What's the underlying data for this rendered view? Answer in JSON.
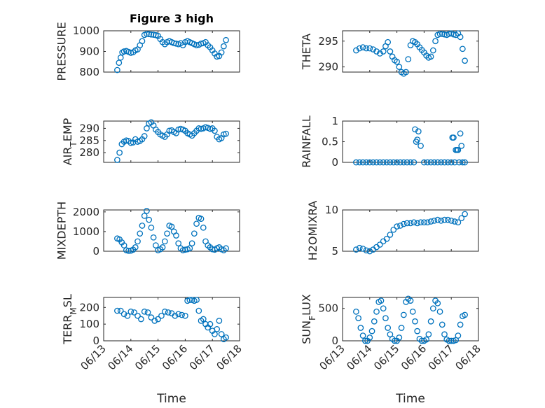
{
  "figure": {
    "marker_color": "#0072BD",
    "grid": true,
    "minor_grid": true
  },
  "chart_data": [
    {
      "type": "scatter",
      "title": "Figure 3 high",
      "ylabel": "PRESSURE",
      "ylim": [
        800,
        1000
      ],
      "yticks": [
        800,
        900,
        1000
      ],
      "yticklabels": [
        "800",
        "900",
        "1000"
      ],
      "xlim": [
        "06/13",
        "06/18"
      ],
      "x": [
        "06/13 12:00",
        "06/13 13:30",
        "06/13 15:00",
        "06/13 16:30",
        "06/13 18:00",
        "06/13 20:00",
        "06/13 22:00",
        "06/14 00:00",
        "06/14 02:00",
        "06/14 04:00",
        "06/14 06:00",
        "06/14 08:00",
        "06/14 10:00",
        "06/14 12:00",
        "06/14 14:00",
        "06/14 16:00",
        "06/14 18:00",
        "06/14 20:00",
        "06/14 22:00",
        "06/15 00:00",
        "06/15 02:00",
        "06/15 04:00",
        "06/15 06:00",
        "06/15 08:00",
        "06/15 10:00",
        "06/15 12:00",
        "06/15 14:00",
        "06/15 16:00",
        "06/15 18:00",
        "06/15 20:00",
        "06/15 22:00",
        "06/16 00:00",
        "06/16 02:00",
        "06/16 04:00",
        "06/16 06:00",
        "06/16 08:00",
        "06/16 10:00",
        "06/16 12:00",
        "06/16 14:00",
        "06/16 16:00",
        "06/16 18:00",
        "06/16 20:00",
        "06/16 22:00",
        "06/17 00:00",
        "06/17 02:00",
        "06/17 04:00",
        "06/17 06:00",
        "06/17 08:00",
        "06/17 10:00",
        "06/17 12:00"
      ],
      "y": [
        810,
        845,
        870,
        895,
        900,
        902,
        898,
        893,
        896,
        905,
        910,
        930,
        950,
        980,
        985,
        984,
        982,
        981,
        979,
        975,
        960,
        945,
        935,
        945,
        950,
        945,
        940,
        938,
        935,
        940,
        930,
        945,
        950,
        945,
        940,
        935,
        930,
        932,
        938,
        940,
        945,
        930,
        920,
        905,
        890,
        875,
        878,
        895,
        925,
        955
      ]
    },
    {
      "type": "scatter",
      "ylabel": "THETA",
      "ylim": [
        289,
        297
      ],
      "yticks": [
        290,
        295
      ],
      "yticklabels": [
        "290",
        "295"
      ],
      "xlim": [
        "06/13",
        "06/18"
      ],
      "x": [
        "06/13 12:00",
        "06/13 15:00",
        "06/13 18:00",
        "06/13 21:00",
        "06/14 00:00",
        "06/14 03:00",
        "06/14 06:00",
        "06/14 09:00",
        "06/14 12:00",
        "06/14 14:00",
        "06/14 16:00",
        "06/14 18:00",
        "06/14 20:00",
        "06/14 22:00",
        "06/15 00:00",
        "06/15 02:00",
        "06/15 04:00",
        "06/15 06:00",
        "06/15 08:00",
        "06/15 10:00",
        "06/15 12:00",
        "06/15 14:00",
        "06/15 16:00",
        "06/15 18:00",
        "06/15 20:00",
        "06/15 22:00",
        "06/16 00:00",
        "06/16 02:00",
        "06/16 04:00",
        "06/16 06:00",
        "06/16 08:00",
        "06/16 10:00",
        "06/16 12:00",
        "06/16 14:00",
        "06/16 16:00",
        "06/16 18:00",
        "06/16 20:00",
        "06/16 22:00",
        "06/17 00:00",
        "06/17 02:00",
        "06/17 04:00",
        "06/17 06:00",
        "06/17 08:00",
        "06/17 10:00",
        "06/17 12:00"
      ],
      "y": [
        293.2,
        293.6,
        293.8,
        293.6,
        293.6,
        293.4,
        293.0,
        292.6,
        293.0,
        294.0,
        294.8,
        293.0,
        292.0,
        291.3,
        291.0,
        290.0,
        289.0,
        288.7,
        289.0,
        291.5,
        294.2,
        295.0,
        294.8,
        294.4,
        293.8,
        293.3,
        292.8,
        292.2,
        291.8,
        292.0,
        293.2,
        295.0,
        296.2,
        296.4,
        296.4,
        296.3,
        296.2,
        296.4,
        296.5,
        296.3,
        296.2,
        296.5,
        295.8,
        293.5,
        291.2
      ]
    },
    {
      "type": "scatter",
      "ylabel": "AIR_TEMP",
      "ylim": [
        276,
        293
      ],
      "yticks": [
        280,
        285,
        290
      ],
      "yticklabels": [
        "280",
        "285",
        "290"
      ],
      "xlim": [
        "06/13",
        "06/18"
      ],
      "x": [
        "06/13 12:00",
        "06/13 14:00",
        "06/13 16:00",
        "06/13 18:00",
        "06/13 20:00",
        "06/13 22:00",
        "06/14 00:00",
        "06/14 02:00",
        "06/14 04:00",
        "06/14 06:00",
        "06/14 08:00",
        "06/14 10:00",
        "06/14 12:00",
        "06/14 14:00",
        "06/14 16:00",
        "06/14 18:00",
        "06/14 20:00",
        "06/14 22:00",
        "06/15 00:00",
        "06/15 02:00",
        "06/15 04:00",
        "06/15 06:00",
        "06/15 08:00",
        "06/15 10:00",
        "06/15 12:00",
        "06/15 14:00",
        "06/15 16:00",
        "06/15 18:00",
        "06/15 20:00",
        "06/15 22:00",
        "06/16 00:00",
        "06/16 02:00",
        "06/16 04:00",
        "06/16 06:00",
        "06/16 08:00",
        "06/16 10:00",
        "06/16 12:00",
        "06/16 14:00",
        "06/16 16:00",
        "06/16 18:00",
        "06/16 20:00",
        "06/16 22:00",
        "06/17 00:00",
        "06/17 02:00",
        "06/17 04:00",
        "06/17 06:00",
        "06/17 08:00",
        "06/17 10:00",
        "06/17 12:00"
      ],
      "y": [
        277,
        280,
        283.5,
        284.5,
        285,
        284.8,
        284,
        284.2,
        285.5,
        284.5,
        284.8,
        285.5,
        286.8,
        290,
        292,
        292.5,
        291.2,
        289.5,
        288.5,
        287.5,
        287,
        286.5,
        287.5,
        289,
        289.2,
        288.5,
        288,
        289.5,
        289.8,
        289.5,
        289,
        288,
        287.5,
        287,
        288,
        289,
        290,
        289.8,
        290,
        290.5,
        290.2,
        289.8,
        290,
        289,
        286.5,
        285.5,
        286,
        287.5,
        287.8
      ]
    },
    {
      "type": "scatter",
      "ylabel": "RAINFALL",
      "ylim": [
        0,
        1
      ],
      "yticks": [
        0,
        0.5,
        1
      ],
      "yticklabels": [
        "0",
        "0.5",
        "1"
      ],
      "xlim": [
        "06/13",
        "06/18"
      ],
      "x": [
        "06/13 12:00",
        "06/13 15:00",
        "06/13 18:00",
        "06/13 21:00",
        "06/14 00:00",
        "06/14 03:00",
        "06/14 06:00",
        "06/14 09:00",
        "06/14 12:00",
        "06/14 15:00",
        "06/14 18:00",
        "06/14 21:00",
        "06/15 00:00",
        "06/15 03:00",
        "06/15 06:00",
        "06/15 09:00",
        "06/15 12:00",
        "06/15 15:00",
        "06/15 16:00",
        "06/15 17:00",
        "06/15 18:00",
        "06/15 19:00",
        "06/15 21:00",
        "06/16 00:00",
        "06/16 03:00",
        "06/16 06:00",
        "06/16 09:00",
        "06/16 12:00",
        "06/16 15:00",
        "06/16 18:00",
        "06/16 21:00",
        "06/17 00:00",
        "06/17 01:00",
        "06/17 02:00",
        "06/17 03:00",
        "06/17 04:00",
        "06/17 05:00",
        "06/17 06:00",
        "06/17 07:00",
        "06/17 08:00",
        "06/17 09:00",
        "06/17 10:00",
        "06/17 12:00"
      ],
      "y": [
        0,
        0,
        0,
        0,
        0,
        0,
        0,
        0,
        0,
        0,
        0,
        0,
        0,
        0,
        0,
        0,
        0,
        0,
        0.8,
        0.5,
        0.55,
        0.75,
        0.4,
        0,
        0,
        0,
        0,
        0,
        0,
        0,
        0,
        0,
        0.6,
        0.6,
        0,
        0.3,
        0.3,
        0.3,
        0,
        0.7,
        0.4,
        0,
        0
      ]
    },
    {
      "type": "scatter",
      "ylabel": "MIXDEPTH",
      "ylim": [
        0,
        2100
      ],
      "yticks": [
        0,
        1000,
        2000
      ],
      "yticklabels": [
        "0",
        "1000",
        "2000"
      ],
      "xlim": [
        "06/13",
        "06/18"
      ],
      "x": [
        "06/13 12:00",
        "06/13 14:00",
        "06/13 16:00",
        "06/13 18:00",
        "06/13 20:00",
        "06/13 22:00",
        "06/14 00:00",
        "06/14 02:00",
        "06/14 04:00",
        "06/14 06:00",
        "06/14 08:00",
        "06/14 10:00",
        "06/14 12:00",
        "06/14 14:00",
        "06/14 16:00",
        "06/14 18:00",
        "06/14 20:00",
        "06/14 22:00",
        "06/15 00:00",
        "06/15 02:00",
        "06/15 04:00",
        "06/15 06:00",
        "06/15 08:00",
        "06/15 10:00",
        "06/15 12:00",
        "06/15 14:00",
        "06/15 16:00",
        "06/15 18:00",
        "06/15 20:00",
        "06/15 22:00",
        "06/16 00:00",
        "06/16 02:00",
        "06/16 04:00",
        "06/16 06:00",
        "06/16 08:00",
        "06/16 10:00",
        "06/16 12:00",
        "06/16 14:00",
        "06/16 16:00",
        "06/16 18:00",
        "06/16 20:00",
        "06/16 22:00",
        "06/17 00:00",
        "06/17 02:00",
        "06/17 04:00",
        "06/17 06:00",
        "06/17 08:00",
        "06/17 10:00",
        "06/17 12:00"
      ],
      "y": [
        650,
        600,
        450,
        300,
        50,
        20,
        30,
        80,
        200,
        500,
        900,
        1300,
        1800,
        2050,
        1600,
        1200,
        700,
        300,
        50,
        100,
        200,
        500,
        900,
        1300,
        1250,
        1000,
        800,
        400,
        150,
        50,
        80,
        100,
        150,
        400,
        900,
        1400,
        1700,
        1650,
        1200,
        500,
        300,
        200,
        100,
        80,
        150,
        200,
        100,
        50,
        150
      ]
    },
    {
      "type": "scatter",
      "ylabel": "H2OMIXRA",
      "ylim": [
        5,
        10
      ],
      "yticks": [
        5,
        10
      ],
      "yticklabels": [
        "5",
        "10"
      ],
      "xlim": [
        "06/13",
        "06/18"
      ],
      "x": [
        "06/13 12:00",
        "06/13 15:00",
        "06/13 18:00",
        "06/13 21:00",
        "06/14 00:00",
        "06/14 03:00",
        "06/14 06:00",
        "06/14 09:00",
        "06/14 12:00",
        "06/14 15:00",
        "06/14 18:00",
        "06/14 21:00",
        "06/15 00:00",
        "06/15 03:00",
        "06/15 06:00",
        "06/15 09:00",
        "06/15 12:00",
        "06/15 15:00",
        "06/15 18:00",
        "06/15 21:00",
        "06/16 00:00",
        "06/16 03:00",
        "06/16 06:00",
        "06/16 09:00",
        "06/16 12:00",
        "06/16 15:00",
        "06/16 18:00",
        "06/16 21:00",
        "06/17 00:00",
        "06/17 03:00",
        "06/17 06:00",
        "06/17 09:00",
        "06/17 12:00"
      ],
      "y": [
        5.2,
        5.4,
        5.3,
        5.1,
        5.0,
        5.2,
        5.5,
        5.8,
        6.2,
        6.5,
        7.0,
        7.6,
        8.0,
        8.1,
        8.3,
        8.4,
        8.4,
        8.5,
        8.4,
        8.5,
        8.5,
        8.5,
        8.6,
        8.7,
        8.8,
        8.7,
        8.8,
        8.8,
        8.7,
        8.6,
        8.5,
        9.0,
        9.5
      ]
    },
    {
      "type": "scatter",
      "ylabel": "TERR_MSL",
      "ylim": [
        0,
        260
      ],
      "yticks": [
        0,
        100,
        200
      ],
      "yticklabels": [
        "0",
        "100",
        "200"
      ],
      "xlabel": "Time",
      "xlim": [
        "06/13",
        "06/18"
      ],
      "xticks": [
        "06/13",
        "06/14",
        "06/15",
        "06/16",
        "06/17",
        "06/18"
      ],
      "x": [
        "06/13 12:00",
        "06/13 15:00",
        "06/13 18:00",
        "06/13 21:00",
        "06/14 00:00",
        "06/14 03:00",
        "06/14 06:00",
        "06/14 09:00",
        "06/14 12:00",
        "06/14 15:00",
        "06/14 18:00",
        "06/14 21:00",
        "06/15 00:00",
        "06/15 03:00",
        "06/15 06:00",
        "06/15 09:00",
        "06/15 12:00",
        "06/15 15:00",
        "06/15 18:00",
        "06/15 21:00",
        "06/16 00:00",
        "06/16 02:00",
        "06/16 04:00",
        "06/16 06:00",
        "06/16 08:00",
        "06/16 10:00",
        "06/16 12:00",
        "06/16 14:00",
        "06/16 16:00",
        "06/16 18:00",
        "06/16 20:00",
        "06/16 22:00",
        "06/17 00:00",
        "06/17 02:00",
        "06/17 04:00",
        "06/17 06:00",
        "06/17 08:00",
        "06/17 10:00",
        "06/17 12:00"
      ],
      "y": [
        180,
        180,
        160,
        150,
        175,
        170,
        150,
        130,
        175,
        170,
        140,
        120,
        130,
        150,
        175,
        170,
        165,
        150,
        160,
        155,
        150,
        240,
        245,
        245,
        240,
        245,
        180,
        120,
        130,
        100,
        80,
        100,
        60,
        40,
        70,
        120,
        40,
        10,
        20
      ]
    },
    {
      "type": "scatter",
      "ylabel": "SUN_FLUX",
      "ylim": [
        0,
        670
      ],
      "yticks": [
        0,
        500
      ],
      "yticklabels": [
        "0",
        "500"
      ],
      "xlabel": "Time",
      "xlim": [
        "06/13",
        "06/18"
      ],
      "xticks": [
        "06/13",
        "06/14",
        "06/15",
        "06/16",
        "06/17",
        "06/18"
      ],
      "x": [
        "06/13 12:00",
        "06/13 14:00",
        "06/13 16:00",
        "06/13 18:00",
        "06/13 20:00",
        "06/13 22:00",
        "06/14 00:00",
        "06/14 02:00",
        "06/14 04:00",
        "06/14 06:00",
        "06/14 08:00",
        "06/14 10:00",
        "06/14 12:00",
        "06/14 14:00",
        "06/14 16:00",
        "06/14 18:00",
        "06/14 20:00",
        "06/14 22:00",
        "06/15 00:00",
        "06/15 02:00",
        "06/15 04:00",
        "06/15 06:00",
        "06/15 08:00",
        "06/15 10:00",
        "06/15 12:00",
        "06/15 14:00",
        "06/15 16:00",
        "06/15 18:00",
        "06/15 20:00",
        "06/15 22:00",
        "06/16 00:00",
        "06/16 02:00",
        "06/16 04:00",
        "06/16 06:00",
        "06/16 08:00",
        "06/16 10:00",
        "06/16 12:00",
        "06/16 14:00",
        "06/16 16:00",
        "06/16 18:00",
        "06/16 20:00",
        "06/16 22:00",
        "06/17 00:00",
        "06/17 02:00",
        "06/17 04:00",
        "06/17 06:00",
        "06/17 08:00",
        "06/17 10:00",
        "06/17 12:00"
      ],
      "y": [
        450,
        350,
        200,
        80,
        0,
        0,
        50,
        150,
        300,
        450,
        600,
        620,
        500,
        350,
        200,
        100,
        30,
        0,
        0,
        50,
        200,
        400,
        600,
        650,
        620,
        450,
        300,
        150,
        30,
        0,
        0,
        20,
        100,
        300,
        500,
        620,
        580,
        450,
        250,
        100,
        20,
        0,
        0,
        0,
        10,
        80,
        250,
        380,
        400
      ]
    }
  ]
}
